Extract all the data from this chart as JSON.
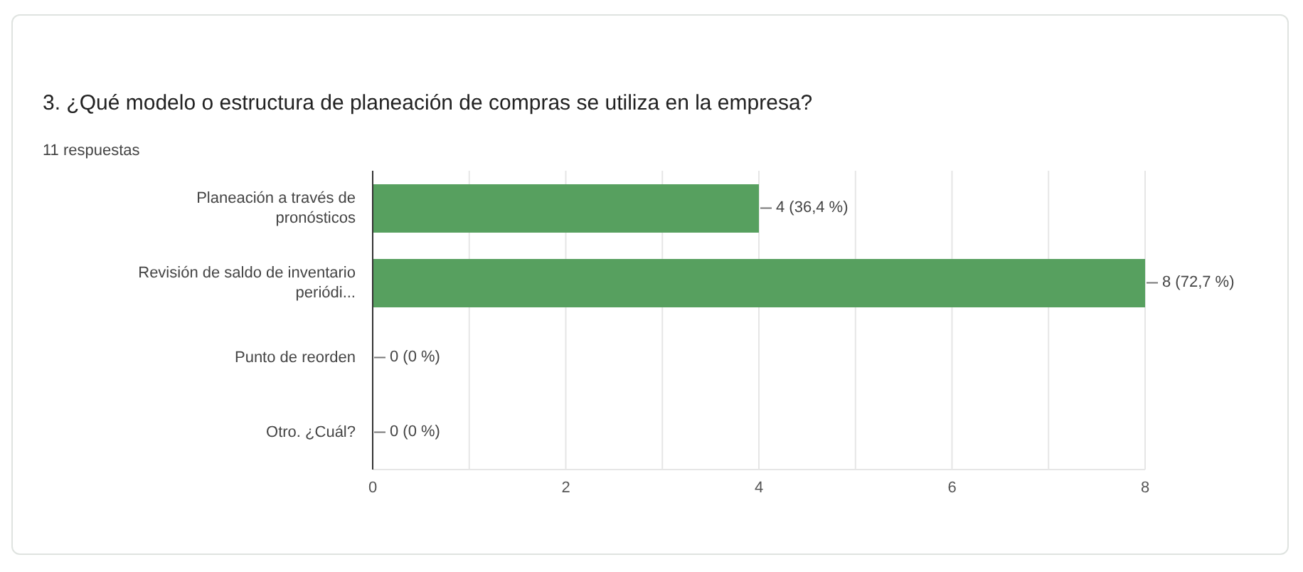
{
  "chart_data": {
    "type": "bar",
    "orientation": "horizontal",
    "title": "3. ¿Qué modelo o estructura de planeación de compras se utiliza en la empresa?",
    "subtitle": "11 respuestas",
    "categories": [
      "Planeación a través de pronósticos",
      "Revisión de saldo de inventario periódi...",
      "Punto de reorden",
      "Otro. ¿Cuál?"
    ],
    "values": [
      4,
      8,
      0,
      0
    ],
    "color": "#57a05f",
    "value_labels": [
      "4 (36,4 %)",
      "8 (72,7 %)",
      "0 (0 %)",
      "0 (0 %)"
    ],
    "xlim": [
      0,
      8
    ],
    "xticks": [
      0,
      {
        "value": 1,
        "label": null
      },
      2,
      {
        "value": 3,
        "label": null
      },
      4,
      {
        "value": 5,
        "label": null
      },
      6,
      {
        "value": 7,
        "label": null
      },
      8
    ],
    "grid": "x"
  }
}
